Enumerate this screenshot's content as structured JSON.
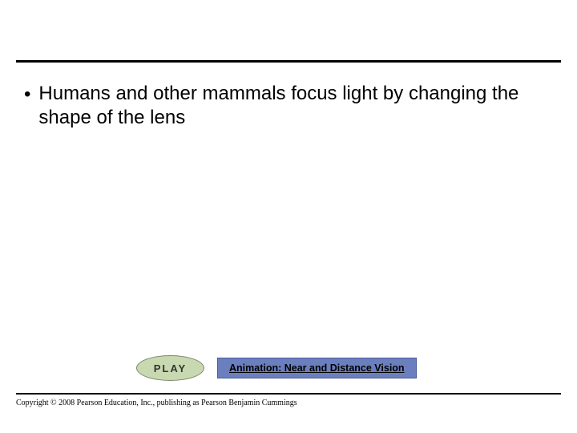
{
  "slide": {
    "rule_color": "#000000",
    "background_color": "#ffffff",
    "bullet": {
      "marker": "•",
      "text": "Humans and other mammals focus light by changing the shape of the lens",
      "fontsize": 24,
      "color": "#000000"
    },
    "play": {
      "label": "PLAY",
      "badge_bg": "#c8d8b0",
      "badge_border": "#7a8a68",
      "badge_text_color": "#333333",
      "animation_label": "Animation: Near and Distance Vision",
      "animation_bg": "#6b7fbf",
      "animation_border": "#4a5a9a"
    },
    "copyright": "Copyright © 2008 Pearson Education, Inc., publishing as Pearson Benjamin Cummings"
  }
}
